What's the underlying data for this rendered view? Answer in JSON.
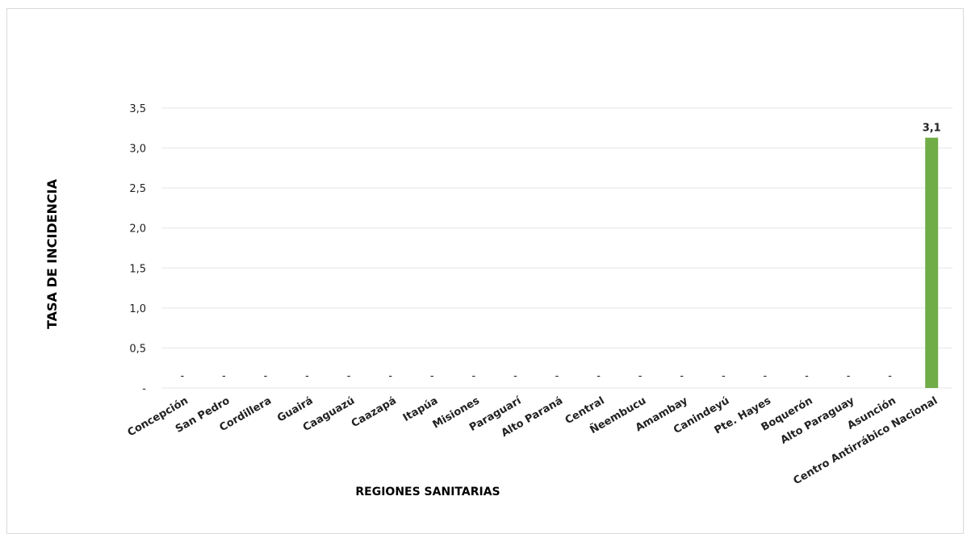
{
  "chart_data": {
    "type": "bar",
    "xlabel": "REGIONES SANITARIAS",
    "ylabel": "TASA DE INCIDENCIA",
    "ylim": [
      0,
      3.5
    ],
    "yticks": [
      {
        "value": 0,
        "label": "-"
      },
      {
        "value": 0.5,
        "label": "0,5"
      },
      {
        "value": 1.0,
        "label": "1,0"
      },
      {
        "value": 1.5,
        "label": "1,5"
      },
      {
        "value": 2.0,
        "label": "2,0"
      },
      {
        "value": 2.5,
        "label": "2,5"
      },
      {
        "value": 3.0,
        "label": "3,0"
      },
      {
        "value": 3.5,
        "label": "3,5"
      }
    ],
    "grid": true,
    "bar_color": "#70ad47",
    "categories": [
      "Concepción",
      "San Pedro",
      "Cordillera",
      "Guairá",
      "Caaguazú",
      "Caazapá",
      "Itapúa",
      "Misiones",
      "Paraguarí",
      "Alto Paraná",
      "Central",
      "Ñeembucu",
      "Amambay",
      "Canindeyú",
      "Pte. Hayes",
      "Boquerón",
      "Alto Paraguay",
      "Asunción",
      "Centro Antirrábico Nacional"
    ],
    "values": [
      0,
      0,
      0,
      0,
      0,
      0,
      0,
      0,
      0,
      0,
      0,
      0,
      0,
      0,
      0,
      0,
      0,
      0,
      3.13
    ],
    "data_labels": [
      "-",
      "-",
      "-",
      "-",
      "-",
      "-",
      "-",
      "-",
      "-",
      "-",
      "-",
      "-",
      "-",
      "-",
      "-",
      "-",
      "-",
      "-",
      "3,1"
    ]
  }
}
